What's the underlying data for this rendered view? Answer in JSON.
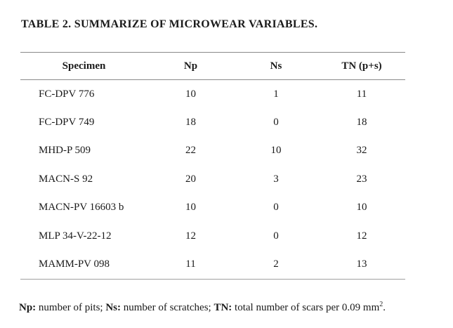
{
  "title": "TABLE 2. SUMMARIZE OF MICROWEAR VARIABLES.",
  "table": {
    "columns": [
      "Specimen",
      "Np",
      "Ns",
      "TN (p+s)"
    ],
    "rows": [
      {
        "specimen": "FC-DPV 776",
        "np": "10",
        "ns": "1",
        "tn": "11"
      },
      {
        "specimen": "FC-DPV 749",
        "np": "18",
        "ns": "0",
        "tn": "18"
      },
      {
        "specimen": "MHD-P 509",
        "np": "22",
        "ns": "10",
        "tn": "32"
      },
      {
        "specimen": "MACN-S 92",
        "np": "20",
        "ns": "3",
        "tn": "23"
      },
      {
        "specimen": "MACN-PV 16603 b",
        "np": "10",
        "ns": "0",
        "tn": "10"
      },
      {
        "specimen": "MLP 34-V-22-12",
        "np": "12",
        "ns": "0",
        "tn": "12"
      },
      {
        "specimen": "MAMM-PV 098",
        "np": "11",
        "ns": "2",
        "tn": "13"
      }
    ]
  },
  "footnote": {
    "segments": [
      {
        "text": "Np:",
        "bold": true,
        "sup": false
      },
      {
        "text": " number of pits; ",
        "bold": false,
        "sup": false
      },
      {
        "text": "Ns:",
        "bold": true,
        "sup": false
      },
      {
        "text": " number of scratches; ",
        "bold": false,
        "sup": false
      },
      {
        "text": "TN:",
        "bold": true,
        "sup": false
      },
      {
        "text": " total number of scars per 0.09 mm",
        "bold": false,
        "sup": false
      },
      {
        "text": "2",
        "bold": false,
        "sup": true
      },
      {
        "text": ".",
        "bold": false,
        "sup": false
      }
    ]
  },
  "colors": {
    "rule_header": "#8a8a8a",
    "rule_bottom": "#a0a0a0",
    "text": "#1a1a1a",
    "background": "#ffffff"
  }
}
